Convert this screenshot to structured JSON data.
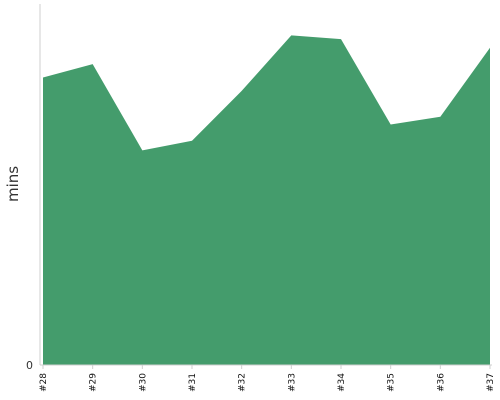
{
  "chart_data": {
    "type": "area",
    "categories": [
      "#28",
      "#29",
      "#30",
      "#31",
      "#32",
      "#33",
      "#34",
      "#35",
      "#36",
      "#37"
    ],
    "series": [
      {
        "values": [
          300,
          314,
          224,
          234,
          286,
          344,
          340,
          251,
          259,
          331
        ],
        "color": "#449c6c"
      }
    ],
    "xlabel": "",
    "ylabel": "mins",
    "ylim": [
      0,
      360
    ],
    "y_ticks": [
      {
        "value": 0,
        "label": "0"
      }
    ],
    "grid": false,
    "legend": "none"
  }
}
